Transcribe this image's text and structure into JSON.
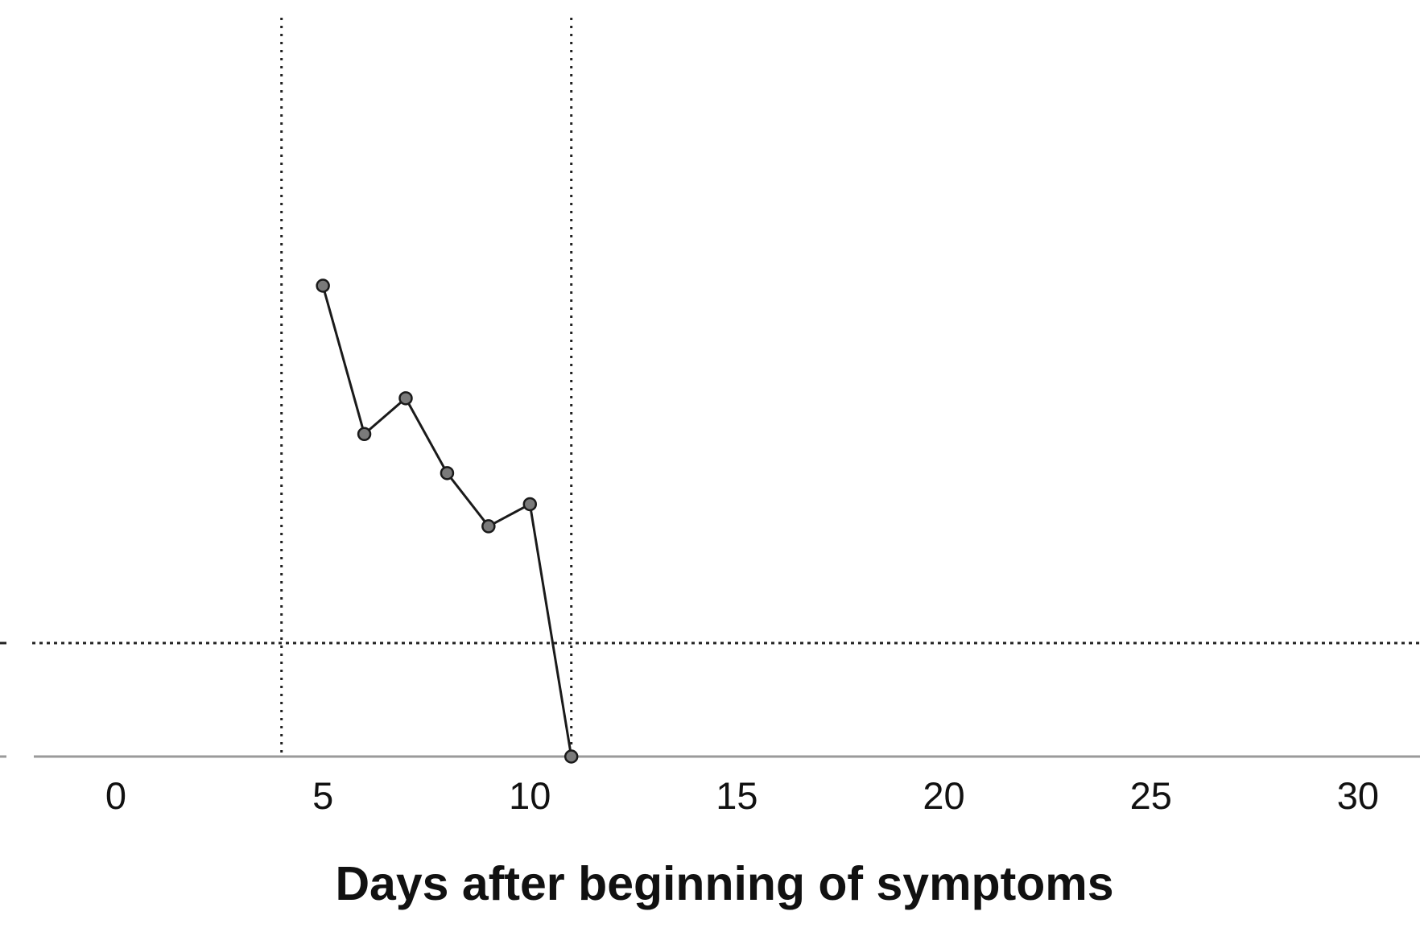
{
  "chart_data": {
    "type": "line",
    "title": "",
    "xlabel": "Days after beginning of symptoms",
    "ylabel": "",
    "xlim": [
      -2.8,
      31.5
    ],
    "ylim": [
      0,
      100
    ],
    "x_ticks": [
      0,
      5,
      10,
      15,
      20,
      25,
      30
    ],
    "grid": false,
    "legend": "none",
    "vertical_reference_lines": [
      4,
      11
    ],
    "horizontal_reference_line": 24.1,
    "series": [
      {
        "x": [
          5,
          6,
          7,
          8,
          9,
          10,
          11
        ],
        "y": [
          100,
          68.5,
          76.1,
          60.2,
          48.9,
          53.6,
          0
        ]
      }
    ],
    "colors": {
      "line": "#1a1a1a",
      "marker_fill": "#7a7a7a",
      "axis": "#9a9a9a",
      "reference": "#222222"
    }
  }
}
